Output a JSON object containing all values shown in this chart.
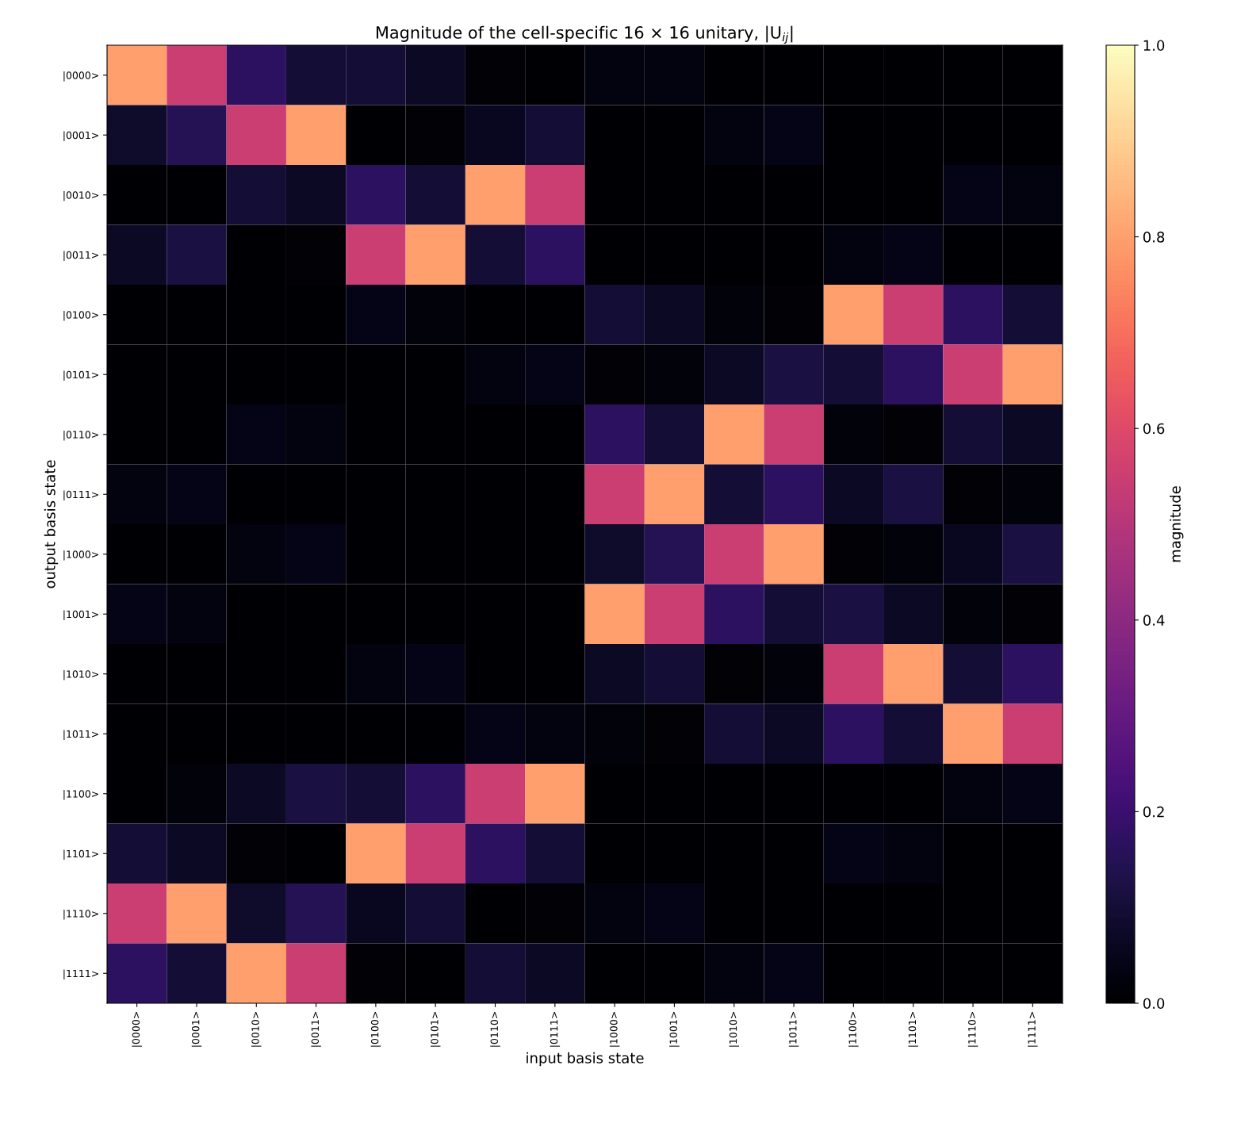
{
  "chart_data": {
    "type": "heatmap",
    "title": "Magnitude of the cell-specific 16 × 16 unitary, |U$_{ij}$|",
    "xlabel": "input basis state",
    "ylabel": "output basis state",
    "clabel": "magnitude",
    "categories": [
      "|0000>",
      "|0001>",
      "|0010>",
      "|0011>",
      "|0100>",
      "|0101>",
      "|0110>",
      "|0111>",
      "|1000>",
      "|1001>",
      "|1010>",
      "|1011>",
      "|1100>",
      "|1101>",
      "|1110>",
      "|1111>"
    ],
    "y_categories": [
      "|0000>",
      "|0001>",
      "|0010>",
      "|0011>",
      "|0100>",
      "|0101>",
      "|0110>",
      "|0111>",
      "|1000>",
      "|1001>",
      "|1010>",
      "|1011>",
      "|1100>",
      "|1101>",
      "|1110>",
      "|1111>"
    ],
    "cells": [
      [
        0.8,
        0.55,
        0.17,
        0.1,
        0.1,
        0.07,
        0.01,
        0,
        0.03,
        0.03,
        0,
        0,
        0,
        0,
        0,
        0
      ],
      [
        0.08,
        0.15,
        0.55,
        0.8,
        0,
        0.01,
        0.06,
        0.1,
        0,
        0,
        0.03,
        0.04,
        0,
        0,
        0,
        0
      ],
      [
        0,
        0,
        0.1,
        0.07,
        0.17,
        0.1,
        0.8,
        0.55,
        0,
        0,
        0,
        0,
        0,
        0,
        0.04,
        0.03
      ],
      [
        0.07,
        0.12,
        0,
        0.01,
        0.55,
        0.8,
        0.1,
        0.17,
        0,
        0,
        0,
        0,
        0.03,
        0.04,
        0,
        0
      ],
      [
        0,
        0,
        0,
        0,
        0.04,
        0.02,
        0,
        0,
        0.1,
        0.07,
        0.02,
        0.01,
        0.8,
        0.55,
        0.17,
        0.1
      ],
      [
        0,
        0,
        0,
        0,
        0,
        0,
        0.03,
        0.04,
        0.01,
        0.02,
        0.07,
        0.12,
        0.1,
        0.17,
        0.55,
        0.8
      ],
      [
        0,
        0,
        0.04,
        0.03,
        0,
        0,
        0,
        0,
        0.17,
        0.1,
        0.8,
        0.55,
        0.02,
        0.01,
        0.1,
        0.07
      ],
      [
        0.03,
        0.04,
        0,
        0,
        0,
        0,
        0,
        0,
        0.55,
        0.8,
        0.1,
        0.17,
        0.07,
        0.12,
        0.01,
        0.02
      ],
      [
        0,
        0,
        0.03,
        0.04,
        0,
        0,
        0,
        0,
        0.08,
        0.15,
        0.55,
        0.8,
        0.01,
        0.02,
        0.06,
        0.12
      ],
      [
        0.04,
        0.03,
        0,
        0,
        0,
        0,
        0,
        0,
        0.8,
        0.55,
        0.17,
        0.1,
        0.12,
        0.07,
        0.02,
        0.01
      ],
      [
        0,
        0,
        0,
        0,
        0.03,
        0.04,
        0,
        0,
        0.07,
        0.1,
        0.01,
        0.02,
        0.55,
        0.8,
        0.1,
        0.17
      ],
      [
        0,
        0,
        0,
        0,
        0,
        0,
        0.04,
        0.03,
        0.02,
        0.01,
        0.1,
        0.07,
        0.17,
        0.1,
        0.8,
        0.55
      ],
      [
        0,
        0.02,
        0.07,
        0.12,
        0.1,
        0.17,
        0.55,
        0.8,
        0,
        0,
        0,
        0,
        0,
        0,
        0.03,
        0.04
      ],
      [
        0.1,
        0.07,
        0.01,
        0,
        0.8,
        0.55,
        0.17,
        0.1,
        0,
        0,
        0,
        0,
        0.04,
        0.03,
        0,
        0
      ],
      [
        0.55,
        0.8,
        0.08,
        0.15,
        0.06,
        0.1,
        0,
        0.01,
        0.03,
        0.04,
        0,
        0,
        0,
        0,
        0,
        0
      ],
      [
        0.17,
        0.1,
        0.8,
        0.55,
        0.01,
        0,
        0.1,
        0.07,
        0,
        0,
        0.03,
        0.04,
        0,
        0,
        0,
        0
      ]
    ],
    "clim": [
      0,
      1
    ],
    "cticks": [
      {
        "value": 0,
        "label": "0.0"
      },
      {
        "value": 0.2,
        "label": "0.2"
      },
      {
        "value": 0.4,
        "label": "0.4"
      },
      {
        "value": 0.6,
        "label": "0.6"
      },
      {
        "value": 0.8,
        "label": "0.8"
      },
      {
        "value": 1,
        "label": "1.0"
      }
    ]
  }
}
